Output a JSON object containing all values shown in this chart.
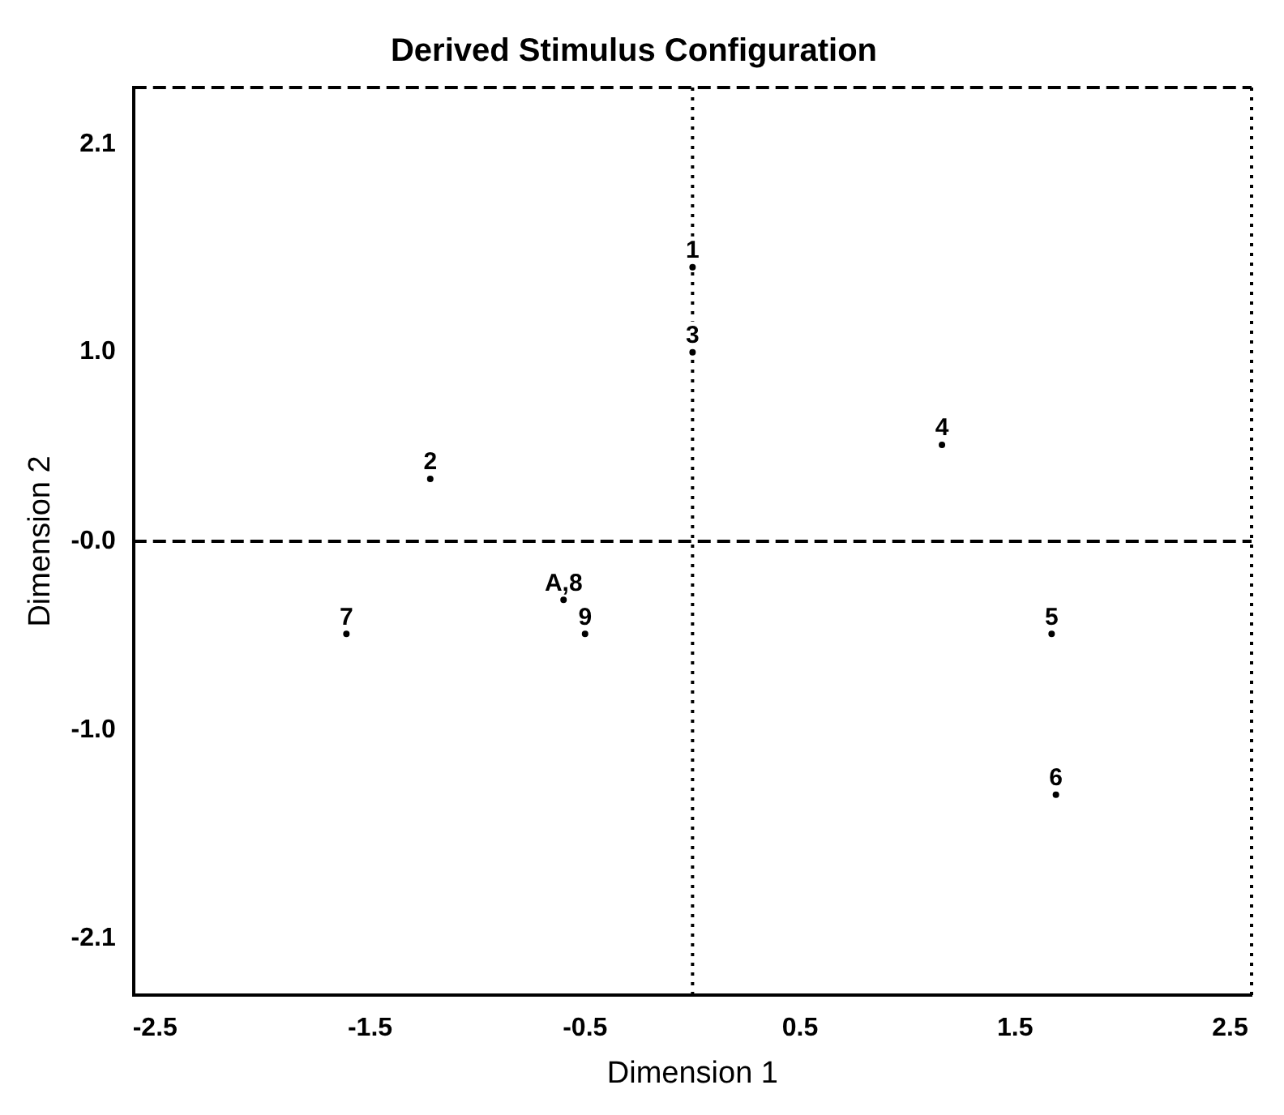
{
  "chart_data": {
    "type": "scatter",
    "title": "Derived Stimulus Configuration",
    "xlabel": "Dimension 1",
    "ylabel": "Dimension 2",
    "series": [
      {
        "color": "#000000",
        "x": [
          0.0,
          -1.22,
          0.0,
          1.16,
          1.67,
          1.69,
          -1.61,
          -0.6,
          -0.5
        ],
        "values": [
          1.45,
          0.33,
          1.0,
          0.51,
          -0.49,
          -1.34,
          -0.49,
          -0.31,
          -0.49
        ]
      }
    ],
    "annotations": [
      {
        "text": "1",
        "x": 0.0,
        "y": 1.45
      },
      {
        "text": "2",
        "x": -1.22,
        "y": 0.33
      },
      {
        "text": "3",
        "x": 0.0,
        "y": 1.0
      },
      {
        "text": "4",
        "x": 1.16,
        "y": 0.51
      },
      {
        "text": "5",
        "x": 1.67,
        "y": -0.49
      },
      {
        "text": "6",
        "x": 1.69,
        "y": -1.34
      },
      {
        "text": "7",
        "x": -1.61,
        "y": -0.49
      },
      {
        "text": "A,8",
        "x": -0.6,
        "y": -0.31
      },
      {
        "text": "9",
        "x": -0.5,
        "y": -0.49
      }
    ],
    "marker": "circle",
    "grid": false,
    "legend": false,
    "xlim": [
      -2.6,
      2.6
    ],
    "xticks": [
      -2.5,
      -1.5,
      -0.5,
      0.5,
      1.5,
      2.5
    ],
    "ylim": [
      -2.4,
      2.4
    ],
    "yticks": [
      {
        "value": 2.1,
        "label": "2.1"
      },
      {
        "value": 1,
        "label": "1.0"
      },
      {
        "value": 0,
        "label": "-0.0"
      },
      {
        "value": -1,
        "label": "-1.0"
      },
      {
        "value": -2.1,
        "label": "-2.1"
      }
    ],
    "ref_lines": [
      {
        "axis": "y",
        "value": 0,
        "line_style": "dashed",
        "color": "#000000"
      },
      {
        "axis": "x",
        "value": 0,
        "line_style": "dotted",
        "color": "#000000"
      }
    ]
  }
}
